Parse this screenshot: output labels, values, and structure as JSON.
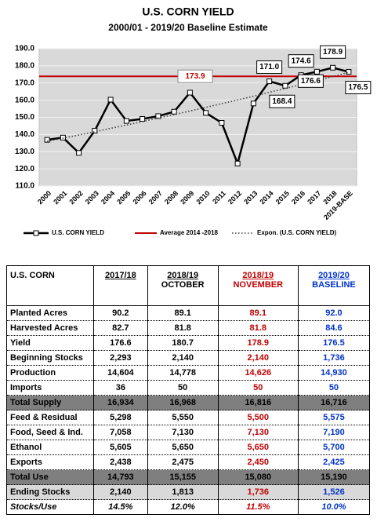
{
  "chart_data": {
    "type": "line",
    "title": "U.S. CORN YIELD",
    "subtitle": "2000/01 - 2019/20 Baseline Estimate",
    "categories": [
      "2000",
      "2001",
      "2002",
      "2003",
      "2004",
      "2005",
      "2006",
      "2007",
      "2008",
      "2009",
      "2010",
      "2011",
      "2012",
      "2013",
      "2014",
      "2015",
      "2016",
      "2017",
      "2018",
      "2019-BASE"
    ],
    "series": [
      {
        "name": "U.S. CORN YIELD",
        "color": "#000000",
        "values": [
          136.9,
          138.2,
          129.3,
          142.2,
          160.3,
          147.9,
          149.1,
          150.7,
          153.3,
          164.4,
          152.6,
          146.8,
          123.1,
          158.1,
          171.0,
          168.4,
          174.6,
          176.6,
          178.9,
          176.5
        ],
        "value_labels": [
          null,
          null,
          null,
          null,
          null,
          null,
          null,
          null,
          null,
          null,
          null,
          null,
          null,
          null,
          "171.0",
          "168.4",
          "174.6",
          "176.6",
          "178.9",
          "176.5"
        ]
      },
      {
        "name": "Expon. (U.S. CORN YIELD)",
        "color": "#404040",
        "dash": "dotted",
        "values": [
          136.0,
          137.9,
          139.7,
          141.6,
          143.6,
          145.5,
          147.5,
          149.6,
          151.6,
          153.7,
          155.8,
          158.0,
          160.1,
          162.3,
          164.6,
          166.8,
          169.1,
          171.5,
          173.8,
          176.2
        ]
      }
    ],
    "reference_line": {
      "name": "Average 2014 -2018",
      "value": 173.9,
      "color": "#c00000"
    },
    "ylim": [
      110,
      190
    ],
    "yticks": [
      {
        "value": 110,
        "label": "110.0"
      },
      {
        "value": 120,
        "label": "120.0"
      },
      {
        "value": 130,
        "label": "130.0"
      },
      {
        "value": 140,
        "label": "140.0"
      },
      {
        "value": 150,
        "label": "150.0"
      },
      {
        "value": 160,
        "label": "160.0"
      },
      {
        "value": 170,
        "label": "170.0"
      },
      {
        "value": 180,
        "label": "180.0"
      },
      {
        "value": 190,
        "label": "190.0"
      }
    ],
    "grid": true,
    "legend": "bottom"
  },
  "table": {
    "headers": [
      "U.S. CORN",
      "2017/18",
      "2018/19",
      "2018/19",
      "2019/20"
    ],
    "subheaders": [
      "OCTOBER",
      "NOVEMBER",
      "BASELINE"
    ],
    "rows": [
      [
        "Planted Acres",
        "90.2",
        "89.1",
        "89.1",
        "92.0"
      ],
      [
        "Harvested Acres",
        "82.7",
        "81.8",
        "81.8",
        "84.6"
      ],
      [
        "Yield",
        "176.6",
        "180.7",
        "178.9",
        "176.5"
      ],
      [
        "Beginning Stocks",
        "2,293",
        "2,140",
        "2,140",
        "1,736"
      ],
      [
        "Production",
        "14,604",
        "14,778",
        "14,626",
        "14,930"
      ],
      [
        "Imports",
        "36",
        "50",
        "50",
        "50"
      ],
      [
        "Total Supply",
        "16,934",
        "16,968",
        "16,816",
        "16,716"
      ],
      [
        "Feed & Residual",
        "5,298",
        "5,550",
        "5,500",
        "5,575"
      ],
      [
        "Food, Seed & Ind.",
        "7,058",
        "7,130",
        "7,130",
        "7,190"
      ],
      [
        "Ethanol",
        "5,605",
        "5,650",
        "5,650",
        "5,700"
      ],
      [
        "Exports",
        "2,438",
        "2,475",
        "2,450",
        "2,425"
      ],
      [
        "Total Use",
        "14,793",
        "15,155",
        "15,080",
        "15,190"
      ],
      [
        "Ending Stocks",
        "2,140",
        "1,813",
        "1,736",
        "1,526"
      ],
      [
        "Stocks/Use",
        "14.5%",
        "12.0%",
        "11.5%",
        "10.0%"
      ]
    ]
  }
}
